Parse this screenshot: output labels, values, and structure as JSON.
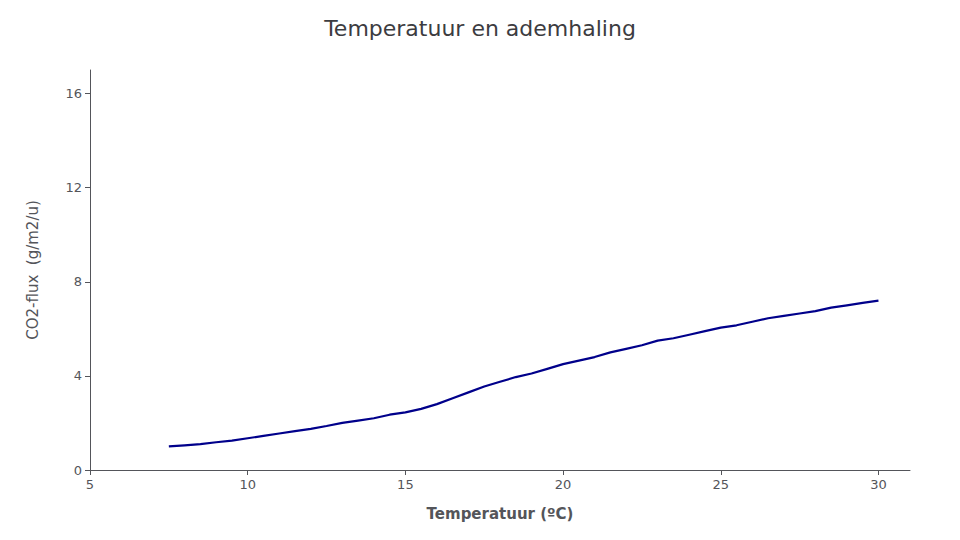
{
  "chart_data": {
    "type": "line",
    "title": "Temperatuur en ademhaling",
    "xlabel": "Temperatuur (ºC)",
    "ylabel": "CO2-flux  (g/m2/u)",
    "x": [
      7.5,
      8,
      8.5,
      9,
      9.5,
      10,
      10.5,
      11,
      11.5,
      12,
      12.5,
      13,
      13.5,
      14,
      14.5,
      15,
      15.5,
      16,
      16.5,
      17,
      17.5,
      18,
      18.5,
      19,
      19.5,
      20,
      20.5,
      21,
      21.5,
      22,
      22.5,
      23,
      23.5,
      24,
      24.5,
      25,
      25.5,
      26,
      26.5,
      27,
      27.5,
      28,
      28.5,
      29,
      29.5,
      30
    ],
    "values": [
      1.0,
      1.05,
      1.1,
      1.18,
      1.25,
      1.35,
      1.45,
      1.55,
      1.65,
      1.75,
      1.87,
      2.0,
      2.1,
      2.2,
      2.35,
      2.45,
      2.6,
      2.8,
      3.05,
      3.3,
      3.55,
      3.75,
      3.95,
      4.1,
      4.3,
      4.5,
      4.65,
      4.8,
      5.0,
      5.15,
      5.3,
      5.5,
      5.6,
      5.75,
      5.9,
      6.05,
      6.15,
      6.3,
      6.45,
      6.55,
      6.65,
      6.75,
      6.9,
      7.0,
      7.1,
      7.2
    ],
    "color": "#00008B",
    "xlim": [
      5,
      31
    ],
    "ylim": [
      0,
      17
    ],
    "xticks": [
      5,
      10,
      15,
      20,
      25,
      30
    ],
    "yticks": [
      0,
      4,
      8,
      12,
      16
    ],
    "grid": false
  }
}
